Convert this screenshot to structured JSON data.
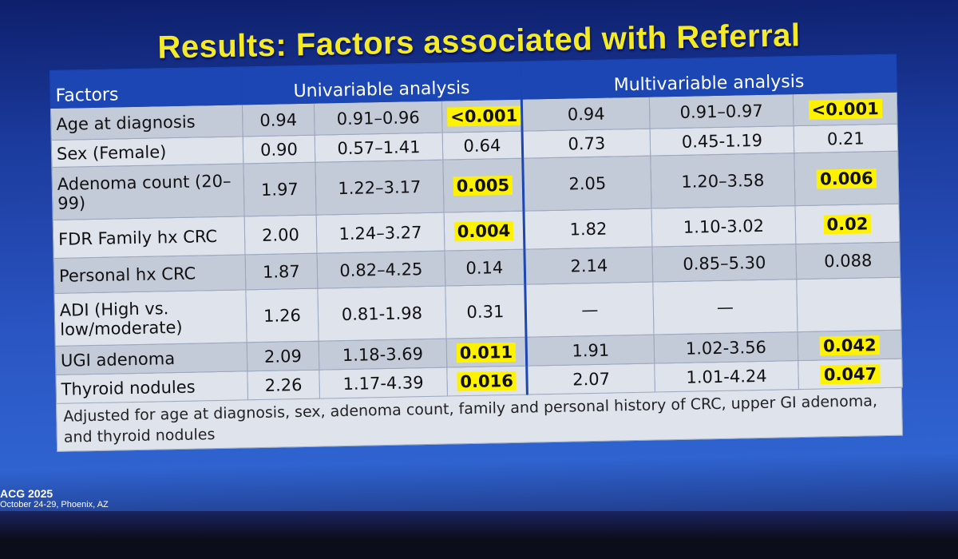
{
  "title": "Results: Factors associated with Referral",
  "headers": {
    "factors": "Factors",
    "univariable": "Univariable analysis",
    "multivariable": "Multivariable analysis"
  },
  "rows": [
    {
      "factor": "Age at diagnosis",
      "u_or": "0.94",
      "u_ci": "0.91–0.96",
      "u_p": "<0.001",
      "u_p_hl": true,
      "m_or": "0.94",
      "m_ci": "0.91–0.97",
      "m_p": "<0.001",
      "m_p_hl": true
    },
    {
      "factor": "Sex (Female)",
      "u_or": "0.90",
      "u_ci": "0.57–1.41",
      "u_p": "0.64",
      "u_p_hl": false,
      "m_or": "0.73",
      "m_ci": "0.45-1.19",
      "m_p": "0.21",
      "m_p_hl": false
    },
    {
      "factor": "Adenoma count (20–99)",
      "u_or": "1.97",
      "u_ci": "1.22–3.17",
      "u_p": "0.005",
      "u_p_hl": true,
      "m_or": "2.05",
      "m_ci": "1.20–3.58",
      "m_p": "0.006",
      "m_p_hl": true
    },
    {
      "factor": "FDR Family hx CRC",
      "u_or": "2.00",
      "u_ci": "1.24–3.27",
      "u_p": "0.004",
      "u_p_hl": true,
      "m_or": "1.82",
      "m_ci": "1.10-3.02",
      "m_p": "0.02",
      "m_p_hl": true
    },
    {
      "factor": "Personal hx CRC",
      "u_or": "1.87",
      "u_ci": "0.82–4.25",
      "u_p": "0.14",
      "u_p_hl": false,
      "m_or": "2.14",
      "m_ci": "0.85–5.30",
      "m_p": "0.088",
      "m_p_hl": false
    },
    {
      "factor": "ADI (High vs. low/moderate)",
      "u_or": "1.26",
      "u_ci": "0.81-1.98",
      "u_p": "0.31",
      "u_p_hl": false,
      "m_or": "—",
      "m_ci": "—",
      "m_p": "",
      "m_p_hl": false
    },
    {
      "factor": "UGI adenoma",
      "u_or": "2.09",
      "u_ci": "1.18-3.69",
      "u_p": "0.011",
      "u_p_hl": true,
      "m_or": "1.91",
      "m_ci": "1.02-3.56",
      "m_p": "0.042",
      "m_p_hl": true
    },
    {
      "factor": "Thyroid nodules",
      "u_or": "2.26",
      "u_ci": "1.17-4.39",
      "u_p": "0.016",
      "u_p_hl": true,
      "m_or": "2.07",
      "m_ci": "1.01-4.24",
      "m_p": "0.047",
      "m_p_hl": true
    }
  ],
  "footnote": "Adjusted for age at diagnosis, sex, adenoma count, family and personal history of CRC, upper GI adenoma, and thyroid nodules",
  "footer": {
    "logo": "ACG 2025",
    "location": "October 24-29, Phoenix, AZ"
  },
  "colors": {
    "title": "#f5ea26",
    "header": "#1b46b4",
    "highlight": "#fff200",
    "row_light": "#dfe4ec",
    "row_dark": "#c4cbd8"
  }
}
